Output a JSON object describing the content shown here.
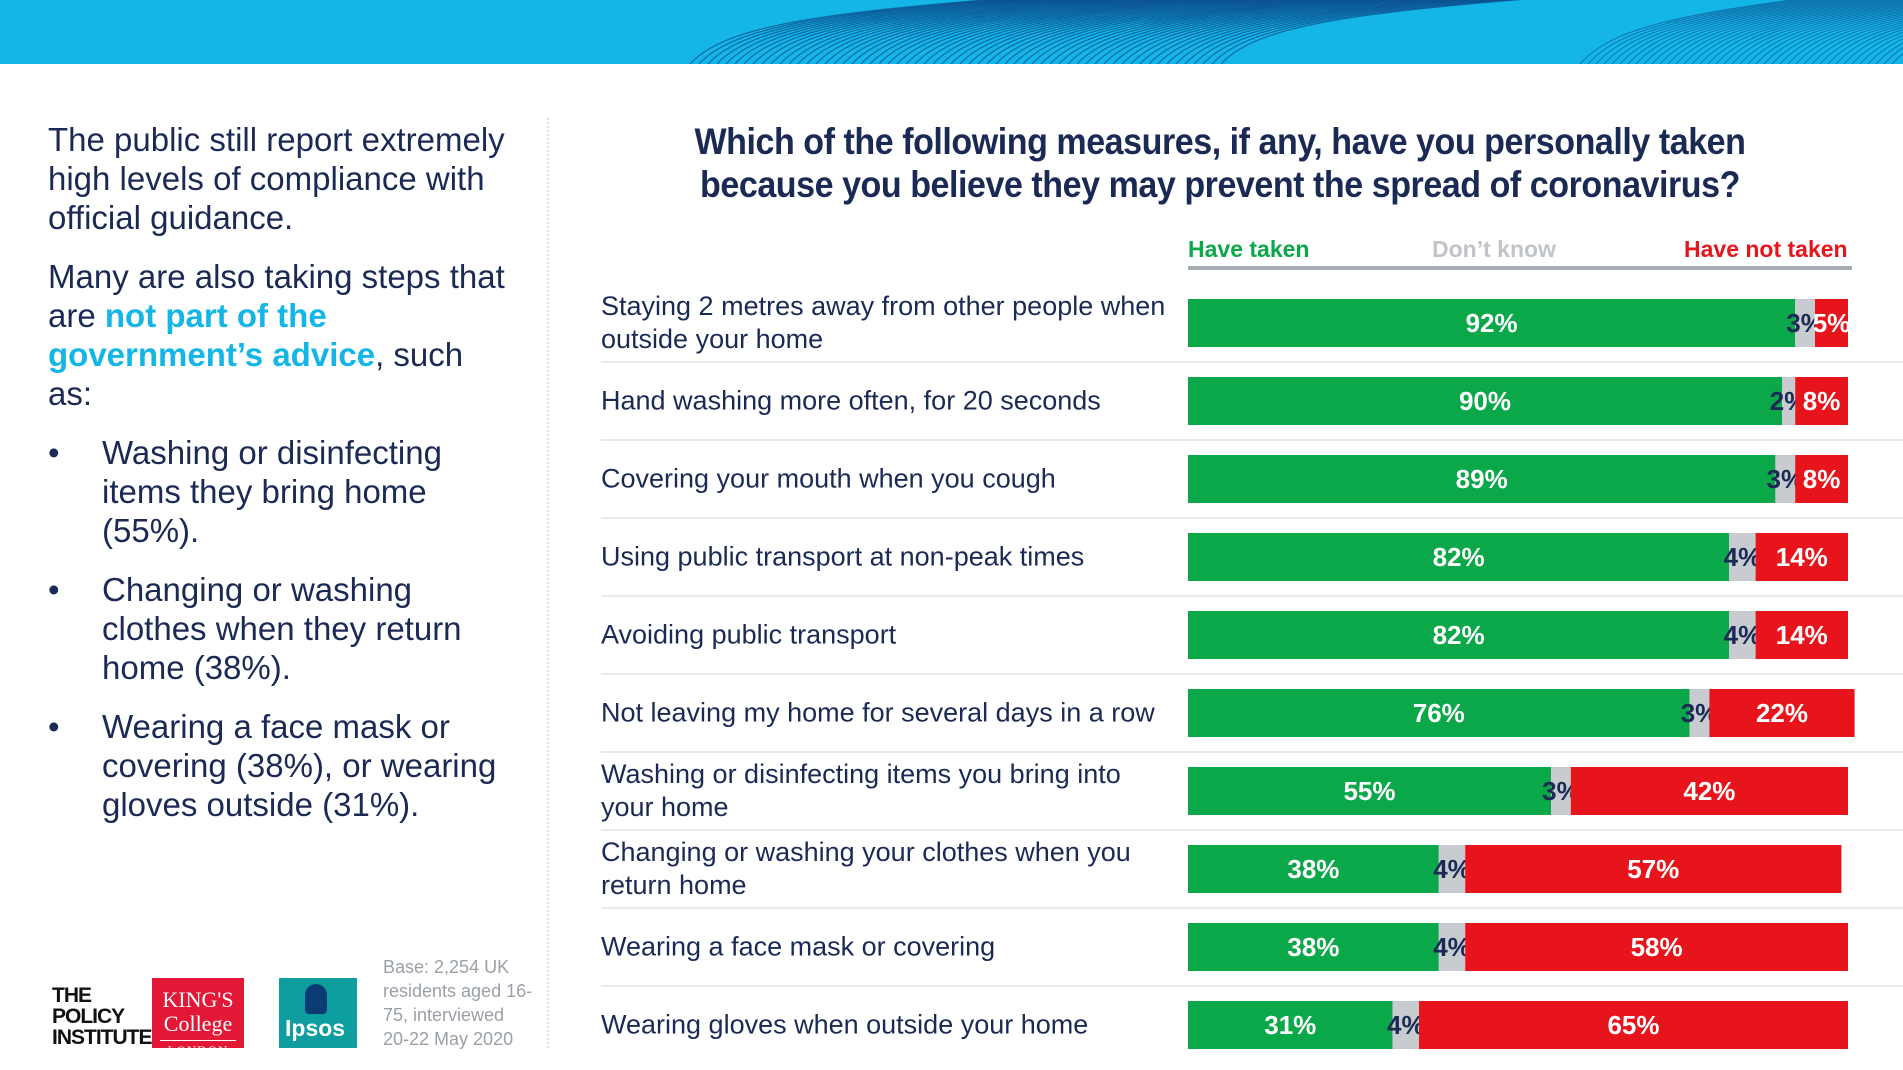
{
  "left_text": {
    "para1": "The public still report extremely high levels of compliance with official guidance.",
    "para2_pre": "Many are also taking steps that are ",
    "para2_highlight": "not part of the government’s advice",
    "para2_post": ", such as:",
    "bullet_char": "•",
    "bullets": [
      "Washing or disinfecting items they bring home (55%).",
      "Changing or washing clothes when they return home (38%).",
      "Wearing a face mask or covering (38%), or wearing gloves outside (31%)."
    ]
  },
  "logos": {
    "policy_institute": "THE POLICY INSTITUTE",
    "kings_line1": "KING'S College",
    "kings_line2": "LONDON",
    "ipsos": "Ipsos"
  },
  "base_note": "Base: 2,254 UK residents aged 16-75, interviewed 20-22 May 2020",
  "colors": {
    "taken": "#0ba84a",
    "dont_know": "#c8ccd0",
    "not_taken": "#e8141c",
    "text": "#1b2a55",
    "accent": "#13b6e6"
  },
  "chart_data": {
    "type": "bar",
    "orientation": "horizontal",
    "stacked": true,
    "title": "Which of the following measures, if any, have you personally taken because you believe they may prevent the spread of coronavirus?",
    "legend": [
      "Have taken",
      "Don’t know",
      "Have not taken"
    ],
    "legend_position": "top",
    "categories": [
      "Staying 2 metres away from other people when outside your home",
      "Hand washing more often, for 20 seconds",
      "Covering your mouth when you cough",
      "Using public transport at non-peak times",
      "Avoiding public transport",
      "Not leaving my home for several days in a row",
      "Washing or disinfecting items you bring into your home",
      "Changing or washing your clothes when you return home",
      "Wearing a face mask or covering",
      "Wearing gloves when outside your home"
    ],
    "series": [
      {
        "name": "Have taken",
        "values": [
          92,
          90,
          89,
          82,
          82,
          76,
          55,
          38,
          38,
          31
        ]
      },
      {
        "name": "Don’t know",
        "values": [
          3,
          2,
          3,
          4,
          4,
          3,
          3,
          4,
          4,
          4
        ]
      },
      {
        "name": "Have not taken",
        "values": [
          5,
          8,
          8,
          14,
          14,
          22,
          42,
          57,
          58,
          65
        ]
      }
    ],
    "value_suffix": "%",
    "xlim": [
      0,
      100
    ],
    "grid": false
  }
}
